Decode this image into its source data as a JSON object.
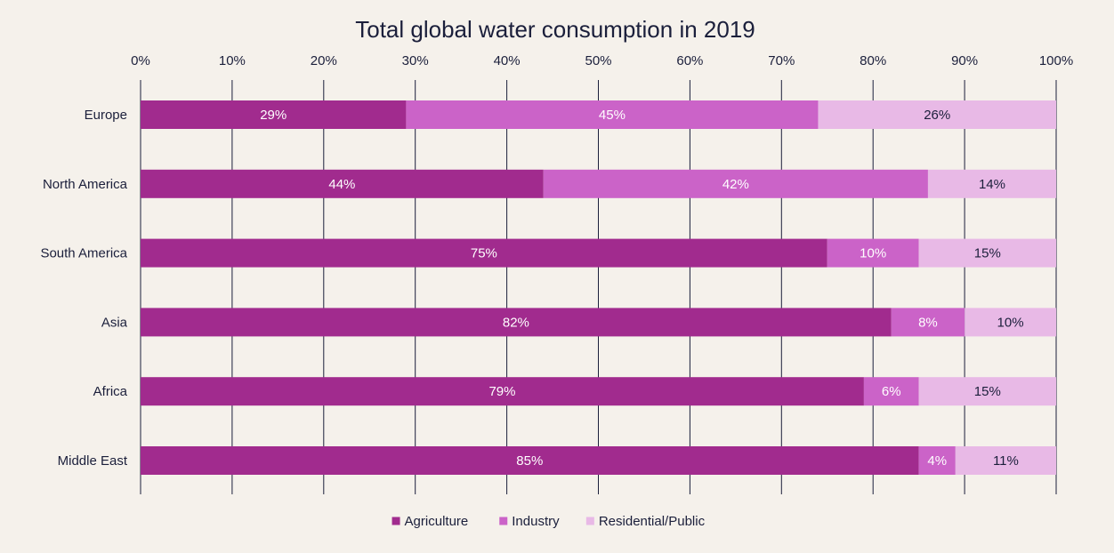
{
  "chart_data": {
    "type": "bar",
    "orientation": "horizontal",
    "stacked": true,
    "title": "Total global water consumption in 2019",
    "xlim": [
      0,
      100
    ],
    "x_ticks": [
      "0%",
      "10%",
      "20%",
      "30%",
      "40%",
      "50%",
      "60%",
      "70%",
      "80%",
      "90%",
      "100%"
    ],
    "x_axis_position": "top",
    "grid": "vertical",
    "legend_position": "bottom-center",
    "categories": [
      "Europe",
      "North America",
      "South America",
      "Asia",
      "Africa",
      "Middle East"
    ],
    "series": [
      {
        "name": "Agriculture",
        "color": "#a12b8e",
        "label_color": "#ffffff",
        "values": [
          29,
          44,
          75,
          82,
          79,
          85
        ]
      },
      {
        "name": "Industry",
        "color": "#cb63c8",
        "label_color": "#ffffff",
        "values": [
          45,
          42,
          10,
          8,
          6,
          4
        ]
      },
      {
        "name": "Residential/Public",
        "color": "#e8b9e6",
        "label_color": "#1b1f3b",
        "values": [
          26,
          14,
          15,
          10,
          15,
          11
        ]
      }
    ]
  }
}
